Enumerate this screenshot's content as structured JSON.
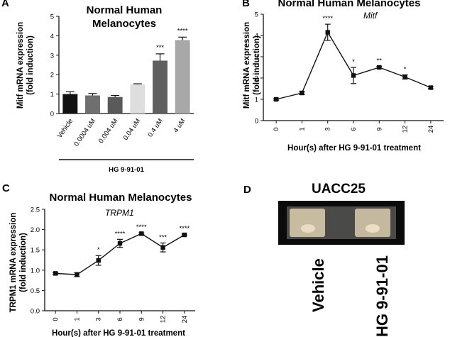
{
  "panels": {
    "A": {
      "letter": "A",
      "title_line1": "Normal Human",
      "title_line2": "Melanocytes",
      "ylabel_line1": "Mitf mRNA expression",
      "ylabel_line2": "(fold induction)",
      "treatment": "HG 9-91-01"
    },
    "B": {
      "letter": "B",
      "title": "Normal Human Melanocytes",
      "gene": "Mitf",
      "ylabel_line1": "Mitf mRNA expression",
      "ylabel_line2": "(fold induction)",
      "xlabel": "Hour(s) after HG 9-91-01 treatment"
    },
    "C": {
      "letter": "C",
      "title": "Normal Human Melanocytes",
      "gene": "TRPM1",
      "ylabel_line1": "TRPM1 mRNA expression",
      "ylabel_line2": "(fold induction)",
      "xlabel": "Hour(s) after HG 9-91-01 treatment"
    },
    "D": {
      "letter": "D",
      "title": "UACC25",
      "label_left": "Vehicle",
      "label_right": "HG 9-91-01"
    }
  },
  "chart_data": [
    {
      "panel": "A",
      "type": "bar",
      "title": "Normal Human Melanocytes",
      "ylabel": "Mitf mRNA expression (fold induction)",
      "xlabel": "HG 9-91-01",
      "categories": [
        "Vehicle",
        "0.0004 uM",
        "0.004 uM",
        "0.04 uM",
        "0.4 uM",
        "4 uM"
      ],
      "values": [
        1.0,
        0.93,
        0.85,
        1.5,
        2.72,
        3.78
      ],
      "errors": [
        0.12,
        0.1,
        0.08,
        0.03,
        0.35,
        0.15
      ],
      "significance": [
        "",
        "",
        "",
        "",
        "***",
        "****"
      ],
      "bar_colors": [
        "#111111",
        "#6f6f6f",
        "#5a5a5a",
        "#dedede",
        "#5f5f5f",
        "#a8a8a8"
      ],
      "ylim": [
        0,
        5
      ],
      "yticks": [
        "0",
        "1",
        "2",
        "3",
        "4",
        "5"
      ]
    },
    {
      "panel": "B",
      "type": "line",
      "title": "Normal Human Melanocytes",
      "ylabel": "Mitf mRNA expression (fold induction)",
      "xlabel": "Hour(s) after HG 9-91-01 treatment",
      "categories": [
        "0",
        "1",
        "3",
        "6",
        "9",
        "12",
        "24"
      ],
      "values": [
        1.0,
        1.3,
        4.15,
        2.12,
        2.5,
        2.05,
        1.55
      ],
      "errors": [
        0.04,
        0.08,
        0.38,
        0.38,
        0.05,
        0.1,
        0.05
      ],
      "significance": [
        "",
        "",
        "****",
        "*",
        "**",
        "*",
        ""
      ],
      "ylim": [
        0,
        5
      ],
      "yticks": [
        "0",
        "1",
        "2",
        "3",
        "4",
        "5"
      ]
    },
    {
      "panel": "C",
      "type": "line",
      "title": "Normal Human Melanocytes",
      "ylabel": "TRPM1 mRNA expression (fold induction)",
      "xlabel": "Hour(s) after HG 9-91-01 treatment",
      "categories": [
        "0",
        "1",
        "3",
        "6",
        "9",
        "12",
        "24"
      ],
      "values": [
        0.92,
        0.89,
        1.24,
        1.66,
        1.9,
        1.56,
        1.87
      ],
      "errors": [
        0.02,
        0.05,
        0.12,
        0.1,
        0.02,
        0.11,
        0.02
      ],
      "significance": [
        "",
        "",
        "*",
        "****",
        "****",
        "***",
        "****"
      ],
      "ylim": [
        0,
        2.5
      ],
      "yticks": [
        "0.0",
        "0.5",
        "1.0",
        "1.5",
        "2.0",
        "2.5"
      ]
    }
  ]
}
